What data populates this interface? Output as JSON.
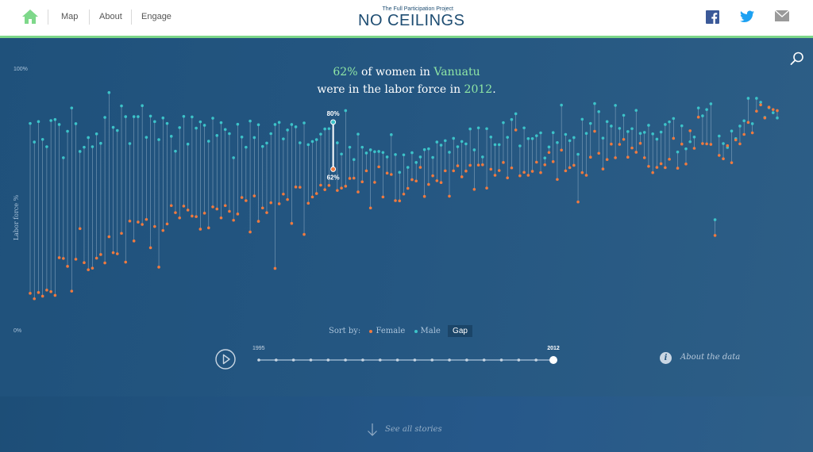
{
  "nav": {
    "items": [
      {
        "label": "Map"
      },
      {
        "label": "About"
      },
      {
        "label": "Engage"
      }
    ]
  },
  "logo": {
    "tagline": "The Full Participation Project",
    "name": "NO CEILINGS"
  },
  "social": {
    "icons": [
      "facebook-icon",
      "twitter-icon",
      "mail-icon"
    ]
  },
  "headline": {
    "value": "62%",
    "mid": " of women in ",
    "country": "Vanuatu",
    "line2": "were in the labor force in ",
    "year": "2012",
    "end": "."
  },
  "colors": {
    "female": "#f07a3f",
    "male": "#3cc3c9",
    "accent": "#8fe6a5",
    "stem": "#9fb9cf"
  },
  "sort": {
    "label": "Sort by:",
    "options": [
      {
        "label": "Female",
        "color": "#f07a3f"
      },
      {
        "label": "Male",
        "color": "#3cc3c9"
      }
    ],
    "selected": "Gap"
  },
  "timeline": {
    "start": "1995",
    "end": "2012",
    "ticks": 18,
    "selected": 17
  },
  "about_label": "About the data",
  "see_all": "See all stories",
  "chart_data": {
    "type": "dumbbell",
    "ylabel": "Labor force %",
    "ylim": [
      0,
      100
    ],
    "ytick_labels": [
      "100%",
      "0%"
    ],
    "year": 2012,
    "highlight": {
      "index": 73,
      "male": 80,
      "female": 62,
      "male_label": "80%",
      "female_label": "62%"
    },
    "series": [
      {
        "name": "Female",
        "values": [
          14.6,
          12.5,
          14.9,
          13.5,
          15.8,
          15.2,
          13.8,
          28.2,
          27.9,
          24.9,
          15.4,
          27.6,
          39.3,
          26.3,
          23.6,
          24.2,
          28.0,
          29.4,
          26.2,
          36.2,
          30.1,
          29.7,
          37.5,
          26.5,
          42.2,
          34.6,
          41.8,
          40.9,
          42.8,
          32.0,
          40.1,
          24.6,
          38.6,
          41.1,
          48.1,
          45.4,
          43.4,
          47.9,
          46.4,
          44.1,
          43.9,
          39.1,
          45.2,
          39.6,
          47.6,
          46.8,
          43.4,
          48.1,
          45.9,
          42.5,
          44.9,
          51.2,
          50.0,
          38.0,
          51.8,
          42.1,
          47.2,
          45.4,
          49.2,
          24.1,
          48.8,
          52.5,
          50.4,
          41.3,
          55.2,
          55.1,
          37.1,
          49.0,
          51.4,
          52.7,
          55.9,
          54.2,
          55.8,
          62.0,
          53.9,
          54.8,
          55.5,
          58.5,
          58.6,
          53.3,
          57.2,
          61.4,
          47.2,
          57.0,
          62.9,
          51.4,
          60.5,
          60.0,
          50.0,
          49.9,
          52.5,
          54.7,
          58.0,
          57.5,
          62.7,
          51.6,
          56.2,
          59.5,
          57.6,
          56.9,
          61.4,
          51.7,
          61.4,
          63.3,
          59.1,
          61.3,
          63.5,
          54.3,
          63.6,
          63.7,
          54.8,
          62.0,
          59.7,
          61.5,
          64.6,
          58.7,
          62.5,
          77.0,
          59.5,
          60.8,
          59.7,
          61.2,
          64.7,
          60.7,
          63.7,
          68.4,
          64.9,
          58.1,
          69.3,
          61.4,
          62.6,
          63.5,
          49.5,
          60.7,
          59.7,
          66.6,
          76.5,
          68.1,
          62.1,
          65.7,
          71.6,
          66.4,
          71.5,
          73.4,
          66.6,
          70.1,
          68.5,
          71.9,
          66.4,
          63.1,
          60.7,
          62.7,
          64.1,
          62.6,
          65.8,
          73.8,
          62.4,
          71.6,
          64.0,
          76.7,
          70.0,
          81.9,
          71.8,
          71.7,
          71.5,
          36.7,
          67.3,
          66.0,
          71.0,
          64.5,
          73.2,
          71.7,
          75.3,
          79.9,
          75.9,
          84.2,
          86.6,
          81.6,
          85.7,
          84.8,
          84.4
        ]
      },
      {
        "name": "Male",
        "values": [
          79.5,
          72.4,
          80.2,
          73.4,
          70.6,
          80.6,
          81.0,
          79.1,
          66.4,
          76.5,
          85.4,
          79.4,
          68.8,
          70.4,
          74.1,
          70.6,
          75.5,
          71.9,
          81.8,
          91.3,
          78.0,
          76.8,
          86.2,
          82.1,
          71.8,
          82.1,
          82.1,
          86.3,
          74.2,
          82.3,
          80.2,
          73.3,
          81.6,
          79.5,
          74.6,
          68.9,
          77.9,
          82.2,
          71.6,
          82.0,
          77.7,
          80.1,
          78.8,
          72.7,
          81.5,
          74.9,
          79.8,
          77.2,
          75.6,
          66.4,
          79.2,
          74.3,
          70.4,
          80.4,
          74.1,
          79.0,
          70.7,
          72.0,
          75.6,
          79.1,
          79.9,
          73.6,
          77.0,
          79.1,
          78.2,
          72.1,
          79.7,
          71.4,
          72.6,
          73.3,
          75.4,
          77.4,
          77.5,
          80.0,
          72.1,
          67.8,
          84.4,
          70.4,
          65.7,
          75.4,
          70.4,
          68.2,
          69.4,
          68.7,
          68.8,
          68.4,
          66.7,
          75.2,
          67.6,
          60.8,
          67.5,
          62.7,
          68.3,
          64.6,
          66.7,
          69.5,
          69.8,
          66.5,
          72.4,
          71.2,
          72.9,
          68.5,
          73.8,
          70.6,
          72.6,
          71.7,
          77.4,
          69.4,
          77.8,
          66.7,
          77.5,
          74.3,
          71.4,
          71.4,
          79.8,
          74.2,
          81.0,
          83.2,
          70.9,
          77.8,
          73.7,
          73.7,
          74.8,
          75.9,
          66.3,
          70.5,
          76.0,
          72.2,
          86.5,
          75.3,
          72.9,
          74.1,
          67.7,
          81.1,
          75.7,
          79.5,
          87.1,
          84.0,
          73.9,
          80.2,
          78.5,
          86.4,
          77.6,
          82.6,
          76.4,
          77.5,
          84.5,
          75.7,
          76.1,
          78.8,
          75.5,
          73.5,
          76.2,
          79.1,
          80.1,
          81.4,
          68.6,
          78.6,
          69.8,
          72.5,
          74.3,
          85.4,
          82.4,
          84.8,
          87.0,
          42.7,
          74.7,
          71.8,
          70.3,
          76.6,
          73.7,
          78.5,
          80.5,
          89.1,
          79.4,
          89.1,
          87.6,
          81.8,
          85.5,
          83.6,
          81.6
        ]
      }
    ]
  }
}
